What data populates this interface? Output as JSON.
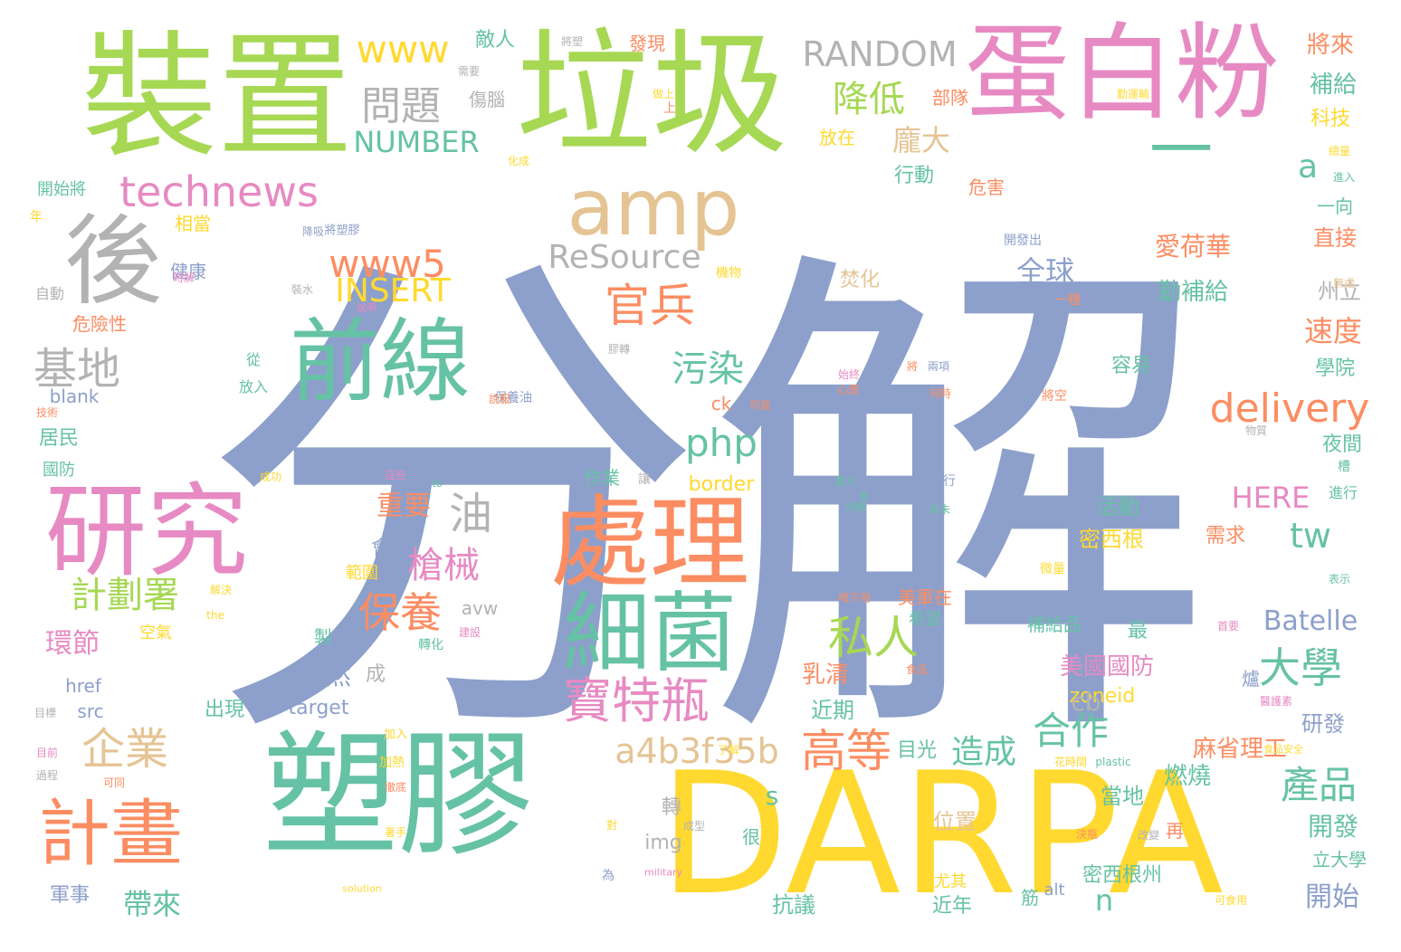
{
  "palette": {
    "periwinkle": "#8da0cb",
    "green": "#a6d854",
    "teal": "#66c2a5",
    "pink": "#e78ac3",
    "yellow": "#ffd92f",
    "orange": "#fc8d62",
    "tan": "#e5c494",
    "gray": "#b3b3b3"
  },
  "words": [
    {
      "text": "分解",
      "color": "periwinkle"
    },
    {
      "text": "垃圾",
      "color": "green"
    },
    {
      "text": "裝置",
      "color": "green"
    },
    {
      "text": "蛋白粉",
      "color": "pink"
    },
    {
      "text": "塑膠",
      "color": "teal"
    },
    {
      "text": "DARPA",
      "color": "yellow"
    },
    {
      "text": "一",
      "color": "teal"
    },
    {
      "text": "amp",
      "color": "tan"
    },
    {
      "text": "後",
      "color": "gray"
    },
    {
      "text": "前線",
      "color": "teal"
    },
    {
      "text": "研究",
      "color": "pink"
    },
    {
      "text": "處理",
      "color": "orange"
    },
    {
      "text": "細菌",
      "color": "teal"
    },
    {
      "text": "計畫",
      "color": "orange"
    },
    {
      "text": "企業",
      "color": "tan"
    },
    {
      "text": "technews",
      "color": "pink"
    },
    {
      "text": "問題",
      "color": "gray"
    },
    {
      "text": "www",
      "color": "yellow"
    },
    {
      "text": "RANDOM",
      "color": "gray"
    },
    {
      "text": "降低",
      "color": "green"
    },
    {
      "text": "NUMBER",
      "color": "teal"
    },
    {
      "text": "www5",
      "color": "orange"
    },
    {
      "text": "INSERT",
      "color": "yellow"
    },
    {
      "text": "ReSource",
      "color": "gray"
    },
    {
      "text": "官兵",
      "color": "orange"
    },
    {
      "text": "污染",
      "color": "teal"
    },
    {
      "text": "php",
      "color": "teal"
    },
    {
      "text": "基地",
      "color": "gray"
    },
    {
      "text": "delivery",
      "color": "orange"
    },
    {
      "text": "寶特瓶",
      "color": "pink"
    },
    {
      "text": "私人",
      "color": "green"
    },
    {
      "text": "大學",
      "color": "teal"
    },
    {
      "text": "高等",
      "color": "orange"
    },
    {
      "text": "合作",
      "color": "teal"
    },
    {
      "text": "造成",
      "color": "teal"
    },
    {
      "text": "產品",
      "color": "teal"
    },
    {
      "text": "a4b3f35b",
      "color": "tan"
    },
    {
      "text": "計劃署",
      "color": "green"
    },
    {
      "text": "保養",
      "color": "orange"
    },
    {
      "text": "槍械",
      "color": "pink"
    },
    {
      "text": "油",
      "color": "gray"
    },
    {
      "text": "tw",
      "color": "teal"
    },
    {
      "text": "HERE",
      "color": "pink"
    },
    {
      "text": "Batelle",
      "color": "periwinkle"
    },
    {
      "text": "龐大",
      "color": "tan"
    },
    {
      "text": "全球",
      "color": "periwinkle"
    },
    {
      "text": "速度",
      "color": "orange"
    },
    {
      "text": "愛荷華",
      "color": "orange"
    },
    {
      "text": "開始",
      "color": "periwinkle"
    },
    {
      "text": "開發",
      "color": "teal"
    },
    {
      "text": "帶來",
      "color": "teal"
    },
    {
      "text": "環節",
      "color": "pink"
    },
    {
      "text": "重要",
      "color": "orange"
    },
    {
      "text": "雖然",
      "color": "periwinkle"
    },
    {
      "text": "乳清",
      "color": "orange"
    },
    {
      "text": "美國國防",
      "color": "pink"
    },
    {
      "text": "麻省理工",
      "color": "orange"
    },
    {
      "text": "位置",
      "color": "tan"
    },
    {
      "text": "活動",
      "color": "teal"
    },
    {
      "text": "密西根",
      "color": "yellow"
    },
    {
      "text": "補給",
      "color": "teal"
    },
    {
      "text": "將來",
      "color": "orange"
    },
    {
      "text": "科技",
      "color": "yellow"
    },
    {
      "text": "勤補給",
      "color": "teal"
    },
    {
      "text": "直接",
      "color": "orange"
    },
    {
      "text": "州立",
      "color": "gray"
    },
    {
      "text": "學院",
      "color": "teal"
    },
    {
      "text": "容易",
      "color": "teal"
    },
    {
      "text": "夜間",
      "color": "teal"
    },
    {
      "text": "需求",
      "color": "orange"
    },
    {
      "text": "燃燒",
      "color": "teal"
    },
    {
      "text": "研發",
      "color": "periwinkle"
    },
    {
      "text": "當地",
      "color": "teal"
    },
    {
      "text": "密西根州",
      "color": "teal"
    },
    {
      "text": "立大學",
      "color": "teal"
    },
    {
      "text": "目光",
      "color": "teal"
    },
    {
      "text": "近期",
      "color": "teal"
    },
    {
      "text": "出現",
      "color": "teal"
    },
    {
      "text": "軍事",
      "color": "periwinkle"
    },
    {
      "text": "抗議",
      "color": "teal"
    },
    {
      "text": "近年",
      "color": "teal"
    },
    {
      "text": "zoneid",
      "color": "yellow"
    },
    {
      "text": "target",
      "color": "periwinkle"
    },
    {
      "text": "src",
      "color": "periwinkle"
    },
    {
      "text": "href",
      "color": "periwinkle"
    },
    {
      "text": "border",
      "color": "yellow"
    },
    {
      "text": "blank",
      "color": "periwinkle"
    },
    {
      "text": "居民",
      "color": "teal"
    },
    {
      "text": "國防",
      "color": "teal"
    },
    {
      "text": "危險性",
      "color": "orange"
    },
    {
      "text": "健康",
      "color": "periwinkle"
    },
    {
      "text": "相當",
      "color": "yellow"
    },
    {
      "text": "自動",
      "color": "gray"
    },
    {
      "text": "開始將",
      "color": "teal"
    },
    {
      "text": "年",
      "color": "yellow"
    },
    {
      "text": "敵人",
      "color": "teal"
    },
    {
      "text": "發現",
      "color": "orange"
    },
    {
      "text": "傷腦",
      "color": "gray"
    },
    {
      "text": "部隊",
      "color": "orange"
    },
    {
      "text": "放在",
      "color": "yellow"
    },
    {
      "text": "行動",
      "color": "teal"
    },
    {
      "text": "危害",
      "color": "orange"
    },
    {
      "text": "一向",
      "color": "teal"
    },
    {
      "text": "焚化",
      "color": "tan"
    },
    {
      "text": "會",
      "color": "periwinkle"
    },
    {
      "text": "最",
      "color": "teal"
    },
    {
      "text": "成",
      "color": "gray"
    },
    {
      "text": "製",
      "color": "teal"
    },
    {
      "text": "範圍",
      "color": "yellow"
    },
    {
      "text": "空氣",
      "color": "yellow"
    },
    {
      "text": "作業",
      "color": "teal"
    },
    {
      "text": "轉",
      "color": "gray"
    },
    {
      "text": "很",
      "color": "teal"
    },
    {
      "text": "筋",
      "color": "teal"
    },
    {
      "text": "尤其",
      "color": "yellow"
    },
    {
      "text": "再",
      "color": "orange"
    },
    {
      "text": "補給品",
      "color": "teal"
    },
    {
      "text": "希望",
      "color": "teal"
    },
    {
      "text": "美軍在",
      "color": "orange"
    },
    {
      "text": "爐",
      "color": "periwinkle"
    },
    {
      "text": "a",
      "color": "teal"
    },
    {
      "text": "s",
      "color": "teal"
    },
    {
      "text": "n",
      "color": "teal"
    },
    {
      "text": "cb",
      "color": "gray"
    },
    {
      "text": "img",
      "color": "gray"
    },
    {
      "text": "avw",
      "color": "gray"
    },
    {
      "text": "alt",
      "color": "periwinkle"
    },
    {
      "text": "ck",
      "color": "orange"
    },
    {
      "text": "可能",
      "color": "orange"
    },
    {
      "text": "將空",
      "color": "orange"
    },
    {
      "text": "保養油",
      "color": "periwinkle"
    },
    {
      "text": "放入",
      "color": "teal"
    },
    {
      "text": "從",
      "color": "teal"
    },
    {
      "text": "技術",
      "color": "orange"
    },
    {
      "text": "將塑膠",
      "color": "periwinkle"
    },
    {
      "text": "降吸",
      "color": "periwinkle"
    },
    {
      "text": "開發出",
      "color": "periwinkle"
    },
    {
      "text": "機物",
      "color": "yellow"
    },
    {
      "text": "一種",
      "color": "orange"
    },
    {
      "text": "物質",
      "color": "gray"
    },
    {
      "text": "表示",
      "color": "teal"
    },
    {
      "text": "進行",
      "color": "teal"
    },
    {
      "text": "微量",
      "color": "yellow"
    },
    {
      "text": "可行",
      "color": "periwinkle"
    },
    {
      "text": "重大",
      "color": "teal"
    },
    {
      "text": "兩項",
      "color": "periwinkle"
    },
    {
      "text": "何時",
      "color": "orange"
    },
    {
      "text": "心理",
      "color": "orange"
    },
    {
      "text": "始終",
      "color": "pink"
    },
    {
      "text": "尚未",
      "color": "teal"
    },
    {
      "text": "分解",
      "color": "teal"
    },
    {
      "text": "化成",
      "color": "yellow"
    },
    {
      "text": "需要",
      "color": "gray"
    },
    {
      "text": "將塑",
      "color": "gray"
    },
    {
      "text": "做上",
      "color": "yellow"
    },
    {
      "text": "上",
      "color": "orange"
    },
    {
      "text": "勤運輸",
      "color": "yellow"
    },
    {
      "text": "總量",
      "color": "yellow"
    },
    {
      "text": "進入",
      "color": "teal"
    },
    {
      "text": "無處",
      "color": "tan"
    },
    {
      "text": "轉化",
      "color": "teal"
    },
    {
      "text": "建設",
      "color": "pink"
    },
    {
      "text": "解決",
      "color": "yellow"
    },
    {
      "text": "the",
      "color": "yellow"
    },
    {
      "text": "目標",
      "color": "gray"
    },
    {
      "text": "目前",
      "color": "pink"
    },
    {
      "text": "過程",
      "color": "gray"
    },
    {
      "text": "可同",
      "color": "orange"
    },
    {
      "text": "加入",
      "color": "yellow"
    },
    {
      "text": "加熱",
      "color": "yellow"
    },
    {
      "text": "徹底",
      "color": "orange"
    },
    {
      "text": "著手",
      "color": "yellow"
    },
    {
      "text": "solution",
      "color": "yellow"
    },
    {
      "text": "military",
      "color": "pink"
    },
    {
      "text": "成型",
      "color": "gray"
    },
    {
      "text": "為",
      "color": "periwinkle"
    },
    {
      "text": "對",
      "color": "yellow"
    },
    {
      "text": "決瓶",
      "color": "orange"
    },
    {
      "text": "改變",
      "color": "gray"
    },
    {
      "text": "可食用",
      "color": "yellow"
    },
    {
      "text": "花時間",
      "color": "yellow"
    },
    {
      "text": "plastic",
      "color": "teal"
    },
    {
      "text": "食品安全",
      "color": "yellow"
    },
    {
      "text": "醫護素",
      "color": "pink"
    },
    {
      "text": "首要",
      "color": "pink"
    },
    {
      "text": "食品",
      "color": "orange"
    },
    {
      "text": "成功",
      "color": "yellow"
    },
    {
      "text": "to",
      "color": "teal"
    },
    {
      "text": "讓",
      "color": "gray"
    },
    {
      "text": "這些",
      "color": "pink"
    },
    {
      "text": "喝下用",
      "color": "orange"
    },
    {
      "text": "了解",
      "color": "yellow"
    },
    {
      "text": "時解",
      "color": "pink"
    },
    {
      "text": "裝水",
      "color": "gray"
    },
    {
      "text": "說明",
      "color": "pink"
    },
    {
      "text": "說服",
      "color": "orange"
    },
    {
      "text": "膠轉",
      "color": "gray"
    },
    {
      "text": "將",
      "color": "orange"
    },
    {
      "text": "郵",
      "color": "teal"
    },
    {
      "text": "槽",
      "color": "teal"
    }
  ]
}
